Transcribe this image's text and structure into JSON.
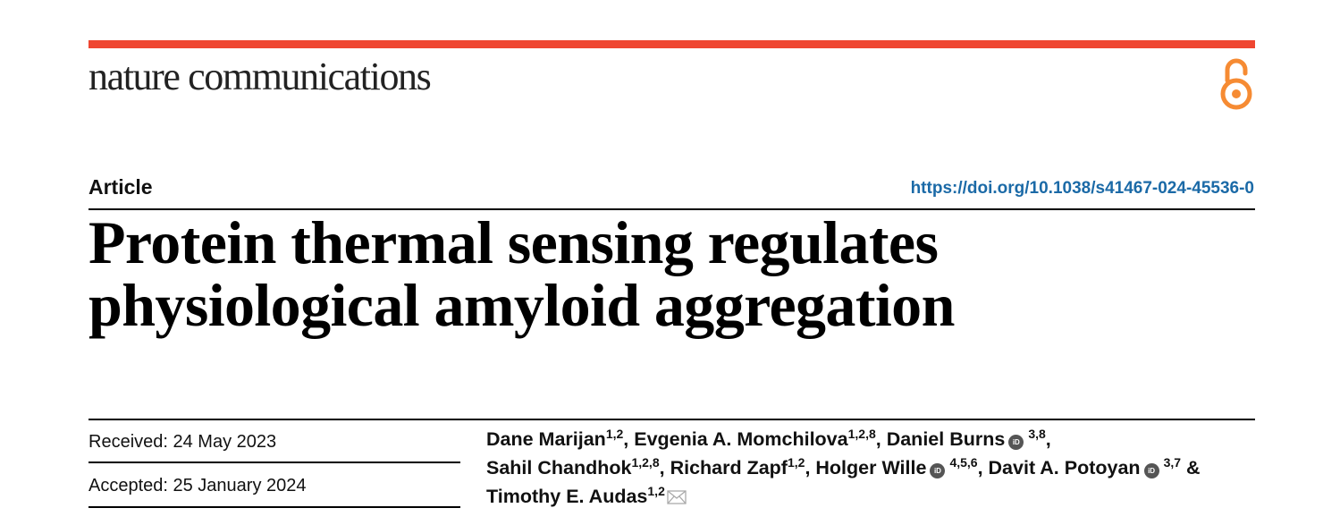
{
  "header": {
    "journal_name": "nature communications",
    "accent_color": "#ef4631",
    "open_access_icon": "open-access-lock-icon",
    "open_access_color": "#f68b33"
  },
  "article": {
    "type": "Article",
    "doi": "https://doi.org/10.1038/s41467-024-45536-0",
    "title_line1": "Protein thermal sensing regulates",
    "title_line2": "physiological amyloid aggregation"
  },
  "dates": {
    "received": "Received: 24 May 2023",
    "accepted": "Accepted: 25 January 2024"
  },
  "authors": [
    {
      "name": "Dane Marijan",
      "aff": "1,2",
      "orcid": false,
      "sep": ", "
    },
    {
      "name": "Evgenia A. Momchilova",
      "aff": "1,2,8",
      "orcid": false,
      "sep": ", "
    },
    {
      "name": "Daniel Burns",
      "aff": "3,8",
      "orcid": true,
      "sep": ","
    },
    {
      "name": "Sahil Chandhok",
      "aff": "1,2,8",
      "orcid": false,
      "sep": ", "
    },
    {
      "name": "Richard Zapf",
      "aff": "1,2",
      "orcid": false,
      "sep": ", "
    },
    {
      "name": "Holger Wille",
      "aff": "4,5,6",
      "orcid": true,
      "sep": ", "
    },
    {
      "name": "Davit A. Potoyan",
      "aff": "3,7",
      "orcid": true,
      "sep": " &"
    },
    {
      "name": "Timothy E. Audas",
      "aff": "1,2",
      "orcid": false,
      "sep": "",
      "corresponding": true
    }
  ],
  "orcid_label": "iD"
}
